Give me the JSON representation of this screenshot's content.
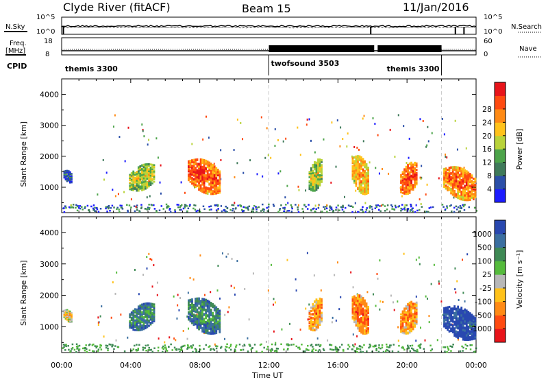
{
  "header": {
    "station": "Clyde River (fitACF)",
    "beam": "Beam 15",
    "date": "11/Jan/2016"
  },
  "status_panels": {
    "nsky_label": "N.Sky",
    "nsearch_label": "N.Search",
    "noise_ticks": [
      "10^5",
      "10^0"
    ],
    "freq_label_1": "Freq.",
    "freq_label_2": "[MHz]",
    "freq_ticks": [
      "18",
      "8"
    ],
    "nave_label": "Nave",
    "nave_ticks": [
      "60",
      "0"
    ],
    "cpid_label": "CPID",
    "modes": [
      {
        "name": "themis 3300",
        "start_h": 0,
        "end_h": 12
      },
      {
        "name": "twofsound 3503",
        "start_h": 12,
        "end_h": 22
      },
      {
        "name": "themis 3300",
        "start_h": 22,
        "end_h": 24
      }
    ]
  },
  "chart_data": [
    {
      "type": "heatmap",
      "name": "power",
      "ylabel": "Slant Range [km]",
      "xlabel": "Time UT",
      "xlim_h": [
        0,
        24
      ],
      "ylim_km": [
        180,
        4500
      ],
      "x_ticks": [
        "00:00",
        "04:00",
        "08:00",
        "12:00",
        "16:00",
        "20:00",
        "00:00"
      ],
      "y_ticks": [
        1000,
        2000,
        3000,
        4000
      ],
      "colorbar": {
        "label": "Power [dB]",
        "ticks": [
          "4",
          "8",
          "12",
          "16",
          "20",
          "24",
          "28"
        ],
        "colors": [
          "#1c1cff",
          "#2b4fa8",
          "#3f7a5a",
          "#4da44a",
          "#b9d33a",
          "#ffc21a",
          "#ff8a14",
          "#ff4a10",
          "#e8141a"
        ]
      },
      "echo_patches": [
        {
          "t0": 0.1,
          "t1": 0.6,
          "r0": 1150,
          "r1": 1550,
          "level": 0.25
        },
        {
          "t0": 3.9,
          "t1": 5.4,
          "r0": 900,
          "r1": 1750,
          "level": 0.55
        },
        {
          "t0": 7.3,
          "t1": 9.2,
          "r0": 800,
          "r1": 1900,
          "level": 0.85
        },
        {
          "t0": 14.3,
          "t1": 15.1,
          "r0": 900,
          "r1": 1900,
          "level": 0.55
        },
        {
          "t0": 16.8,
          "t1": 17.8,
          "r0": 800,
          "r1": 2000,
          "level": 0.7
        },
        {
          "t0": 19.6,
          "t1": 20.6,
          "r0": 800,
          "r1": 1800,
          "level": 0.85
        },
        {
          "t0": 22.1,
          "t1": 24.0,
          "r0": 600,
          "r1": 1650,
          "level": 0.8
        }
      ]
    },
    {
      "type": "heatmap",
      "name": "velocity",
      "ylabel": "Slant Range [km]",
      "xlabel": "Time UT",
      "xlim_h": [
        0,
        24
      ],
      "ylim_km": [
        180,
        4500
      ],
      "x_ticks": [
        "00:00",
        "04:00",
        "08:00",
        "12:00",
        "16:00",
        "20:00",
        "00:00"
      ],
      "y_ticks": [
        1000,
        2000,
        3000,
        4000
      ],
      "colorbar": {
        "label": "Velocity [m s⁻¹]",
        "ticks": [
          "1000",
          "500",
          "100",
          "25",
          "-25",
          "-100",
          "-500",
          "-1000"
        ],
        "colors": [
          "#2948b0",
          "#3b6fa0",
          "#3f8a55",
          "#55bb3c",
          "#b8b8b8",
          "#ffc21a",
          "#ff8a14",
          "#ff4a10",
          "#e8141a"
        ]
      },
      "echo_patches": [
        {
          "t0": 0.1,
          "t1": 0.6,
          "r0": 1150,
          "r1": 1550,
          "level": 0.65
        },
        {
          "t0": 3.9,
          "t1": 5.4,
          "r0": 900,
          "r1": 1750,
          "level": 0.3
        },
        {
          "t0": 7.3,
          "t1": 9.2,
          "r0": 800,
          "r1": 1900,
          "level": 0.3
        },
        {
          "t0": 14.3,
          "t1": 15.1,
          "r0": 900,
          "r1": 1900,
          "level": 0.75
        },
        {
          "t0": 16.8,
          "t1": 17.8,
          "r0": 800,
          "r1": 2000,
          "level": 0.8
        },
        {
          "t0": 19.6,
          "t1": 20.6,
          "r0": 800,
          "r1": 1800,
          "level": 0.75
        },
        {
          "t0": 22.1,
          "t1": 24.0,
          "r0": 600,
          "r1": 1650,
          "level": 0.1
        }
      ]
    }
  ]
}
